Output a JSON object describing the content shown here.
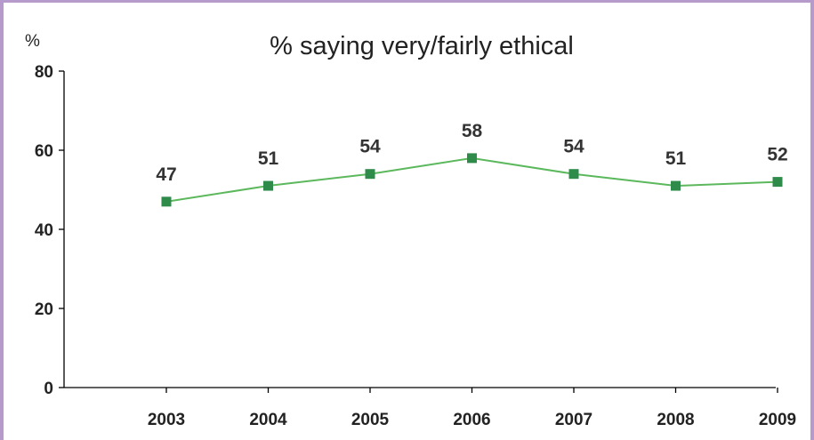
{
  "chart_data": {
    "type": "line",
    "title": "% saying very/fairly ethical",
    "y_unit_label": "%",
    "xlabel": "",
    "ylabel": "",
    "categories": [
      "2003",
      "2004",
      "2005",
      "2006",
      "2007",
      "2008",
      "2009"
    ],
    "series": [
      {
        "values": [
          47,
          51,
          54,
          58,
          54,
          51,
          52
        ],
        "color": "#2e8b4a"
      }
    ],
    "ylim": [
      0,
      80
    ],
    "yticks": [
      "0",
      "20",
      "40",
      "60",
      "80"
    ],
    "grid": false,
    "legend": "none",
    "line_color": "#5cb85c",
    "marker_color": "#2e8b4a",
    "frame_color": "#b59acb"
  }
}
